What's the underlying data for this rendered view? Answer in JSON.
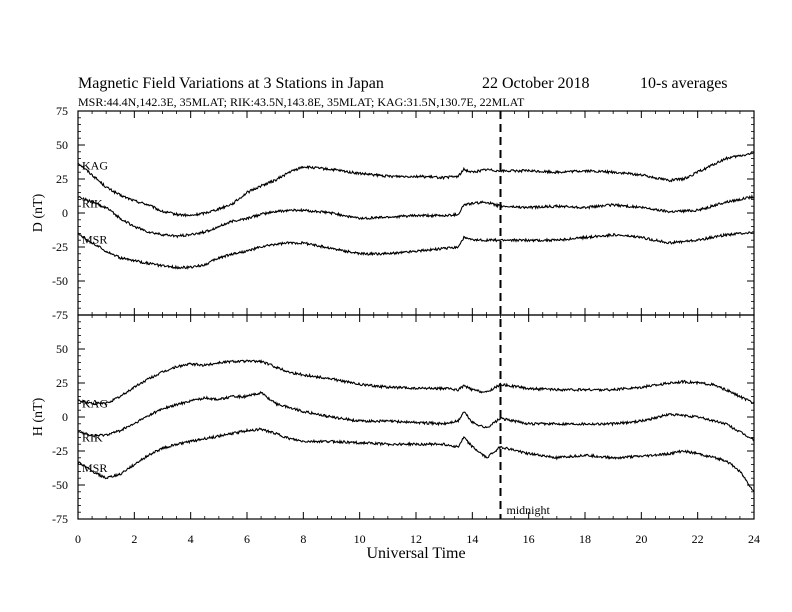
{
  "header": {
    "title": "Magnetic Field Variations at 3 Stations in Japan",
    "date": "22 October 2018",
    "averaging": "10-s averages",
    "stations_line": "MSR:44.4N,142.3E, 35MLAT;  RIK:43.5N,143.8E, 35MLAT;  KAG:31.5N,130.7E, 22MLAT"
  },
  "chart_data": {
    "type": "line",
    "xlabel": "Universal Time",
    "xlim": [
      0,
      24
    ],
    "xticks": [
      0,
      2,
      4,
      6,
      8,
      10,
      12,
      14,
      16,
      18,
      20,
      22,
      24
    ],
    "annotation": {
      "x": 15,
      "label": "midnight",
      "style": "dashed"
    },
    "panels": [
      {
        "id": "D",
        "ylabel": "D (nT)",
        "ylim": [
          -75,
          75
        ],
        "yticks": [
          75,
          50,
          25,
          0,
          -25,
          -50,
          -75
        ],
        "series": [
          {
            "name": "KAG",
            "x": [
              0,
              0.5,
              1,
              1.5,
              2,
              2.5,
              3,
              3.5,
              4,
              4.5,
              5,
              5.5,
              6,
              6.5,
              7,
              7.5,
              8,
              8.5,
              9,
              10,
              11,
              12,
              13,
              13.5,
              13.7,
              14,
              14.5,
              15,
              16,
              17,
              18,
              19,
              20,
              21,
              21.5,
              22,
              22.5,
              23,
              23.5,
              24
            ],
            "y": [
              37,
              28,
              19,
              13,
              9,
              6,
              1,
              -1,
              -2,
              0,
              3,
              7,
              15,
              20,
              24,
              30,
              34,
              33,
              32,
              29,
              27,
              27,
              26,
              27,
              32,
              30,
              32,
              31,
              31,
              30,
              31,
              30,
              28,
              24,
              25,
              30,
              35,
              40,
              42,
              44
            ]
          },
          {
            "name": "RIK",
            "x": [
              0,
              0.5,
              1,
              1.5,
              2,
              2.5,
              3,
              3.5,
              4,
              4.5,
              5,
              5.5,
              6,
              6.5,
              7,
              7.5,
              8,
              9,
              10,
              11,
              12,
              13,
              13.5,
              13.7,
              14,
              14.5,
              15,
              16,
              17,
              18,
              19,
              20,
              21,
              22,
              23,
              24
            ],
            "y": [
              12,
              8,
              4,
              -4,
              -10,
              -14,
              -16,
              -17,
              -16,
              -14,
              -10,
              -6,
              -4,
              -1,
              1,
              2,
              2,
              0,
              -4,
              -3,
              -2,
              -2,
              -1,
              6,
              7,
              8,
              5,
              4,
              5,
              4,
              6,
              4,
              1,
              2,
              8,
              12
            ]
          },
          {
            "name": "MSR",
            "x": [
              0,
              0.5,
              1,
              1.5,
              2,
              2.5,
              3,
              3.5,
              4,
              4.5,
              5,
              5.5,
              6,
              6.5,
              7,
              7.5,
              8,
              9,
              10,
              11,
              12,
              13,
              13.5,
              13.7,
              14,
              14.5,
              15,
              16,
              17,
              18,
              19,
              20,
              21,
              22,
              23,
              24
            ],
            "y": [
              -15,
              -22,
              -28,
              -33,
              -35,
              -37,
              -39,
              -40,
              -40,
              -38,
              -33,
              -30,
              -28,
              -25,
              -23,
              -22,
              -22,
              -26,
              -30,
              -30,
              -28,
              -26,
              -25,
              -18,
              -20,
              -20,
              -20,
              -20,
              -20,
              -18,
              -16,
              -18,
              -22,
              -20,
              -16,
              -14
            ]
          }
        ]
      },
      {
        "id": "H",
        "ylabel": "H (nT)",
        "ylim": [
          -75,
          75
        ],
        "yticks": [
          75,
          50,
          25,
          0,
          -25,
          -50,
          -75
        ],
        "series": [
          {
            "name": "KAG",
            "x": [
              0,
              0.5,
              1,
              1.5,
              2,
              2.5,
              3,
              3.5,
              4,
              4.5,
              5,
              5.5,
              6,
              6.5,
              7,
              7.5,
              8,
              9,
              10,
              11,
              12,
              13,
              13.5,
              13.7,
              14,
              14.5,
              15,
              16,
              17,
              18,
              19,
              20,
              21,
              21.5,
              22,
              22.5,
              23,
              23.5,
              24
            ],
            "y": [
              12,
              10,
              10,
              15,
              22,
              28,
              33,
              37,
              39,
              38,
              40,
              41,
              41,
              41,
              37,
              33,
              31,
              28,
              24,
              22,
              21,
              21,
              20,
              23,
              20,
              18,
              24,
              21,
              20,
              20,
              20,
              22,
              25,
              26,
              25,
              24,
              20,
              15,
              10
            ]
          },
          {
            "name": "RIK",
            "x": [
              0,
              0.5,
              1,
              1.5,
              2,
              2.5,
              3,
              3.5,
              4,
              4.5,
              5,
              5.5,
              6,
              6.5,
              7,
              7.5,
              8,
              9,
              10,
              11,
              12,
              13,
              13.5,
              13.7,
              14,
              14.5,
              15,
              16,
              17,
              18,
              19,
              20,
              21,
              22,
              23,
              24
            ],
            "y": [
              -10,
              -14,
              -13,
              -10,
              -5,
              1,
              6,
              9,
              12,
              14,
              13,
              15,
              15,
              18,
              10,
              7,
              4,
              0,
              -3,
              -3,
              -4,
              -5,
              -3,
              4,
              -4,
              -8,
              -1,
              -5,
              -5,
              -5,
              -5,
              -3,
              2,
              0,
              -5,
              -17
            ]
          },
          {
            "name": "MSR",
            "x": [
              0,
              0.5,
              1,
              1.5,
              2,
              2.5,
              3,
              3.5,
              4,
              4.5,
              5,
              5.5,
              6,
              6.5,
              7,
              7.5,
              8,
              9,
              10,
              11,
              12,
              13,
              13.5,
              13.7,
              14,
              14.5,
              15,
              16,
              17,
              18,
              19,
              20,
              21,
              21.5,
              22,
              23,
              23.5,
              24
            ],
            "y": [
              -33,
              -40,
              -45,
              -42,
              -35,
              -28,
              -23,
              -20,
              -18,
              -16,
              -14,
              -12,
              -10,
              -9,
              -12,
              -16,
              -18,
              -18,
              -19,
              -20,
              -20,
              -20,
              -22,
              -15,
              -22,
              -30,
              -22,
              -27,
              -30,
              -28,
              -30,
              -29,
              -27,
              -25,
              -27,
              -32,
              -40,
              -55
            ]
          }
        ]
      }
    ]
  }
}
